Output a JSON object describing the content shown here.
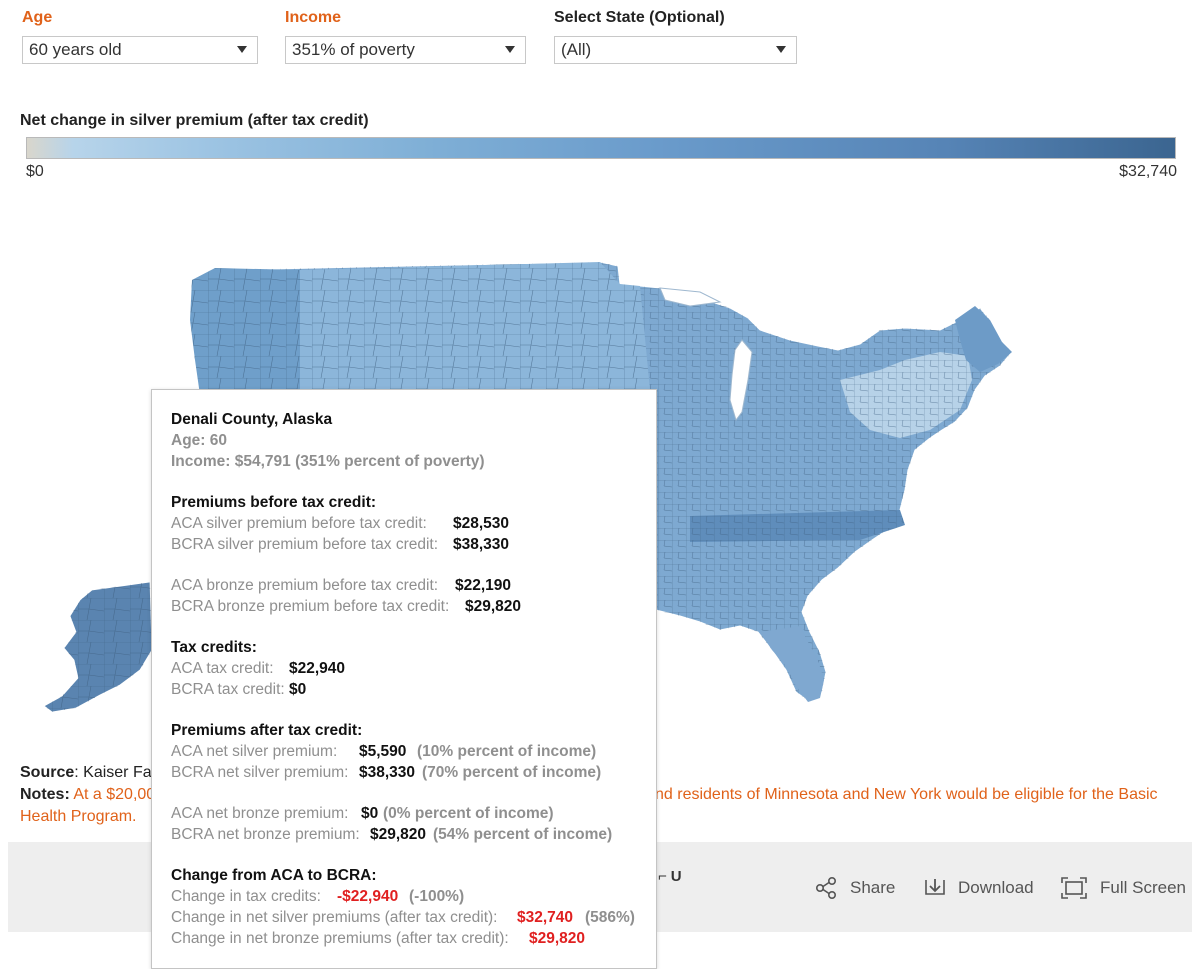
{
  "filters": {
    "age": {
      "label": "Age",
      "value": "60 years old"
    },
    "income": {
      "label": "Income",
      "value": "351% of poverty"
    },
    "state": {
      "label": "Select State (Optional)",
      "value": "(All)"
    }
  },
  "legend": {
    "title": "Net change in silver premium (after tax credit)",
    "min": "$0",
    "max": "$32,740"
  },
  "tooltip": {
    "title": "Denali County, Alaska",
    "age": "Age: 60",
    "income": "Income: $54,791 (351% percent of poverty)",
    "before_header": "Premiums before tax credit:",
    "aca_silver_before_label": "ACA silver premium before tax credit:",
    "aca_silver_before_value": "$28,530",
    "bcra_silver_before_label": "BCRA silver premium before tax credit:",
    "bcra_silver_before_value": "$38,330",
    "aca_bronze_before_label": "ACA bronze premium before tax credit:",
    "aca_bronze_before_value": "$22,190",
    "bcra_bronze_before_label": "BCRA bronze premium before tax credit:",
    "bcra_bronze_before_value": "$29,820",
    "credits_header": "Tax credits:",
    "aca_credit_label": "ACA tax credit:",
    "aca_credit_value": "$22,940",
    "bcra_credit_label": "BCRA tax credit:",
    "bcra_credit_value": "$0",
    "after_header": "Premiums after tax credit:",
    "aca_net_silver_label": "ACA net silver premium:",
    "aca_net_silver_value": "$5,590",
    "aca_net_silver_pct": "(10% percent of income)",
    "bcra_net_silver_label": "BCRA net silver premium:",
    "bcra_net_silver_value": "$38,330",
    "bcra_net_silver_pct": "(70% percent of income)",
    "aca_net_bronze_label": "ACA net bronze premium:",
    "aca_net_bronze_value": "$0",
    "aca_net_bronze_pct": "(0% percent of income)",
    "bcra_net_bronze_label": "BCRA net bronze premium:",
    "bcra_net_bronze_value": "$29,820",
    "bcra_net_bronze_pct": "(54% percent of income)",
    "change_header": "Change from ACA to BCRA:",
    "change_credits_label": "Change in tax credits:",
    "change_credits_value": "-$22,940",
    "change_credits_pct": "(-100%)",
    "change_silver_label": "Change in net silver premiums (after tax credit):",
    "change_silver_value": "$32,740",
    "change_silver_pct": "(586%)",
    "change_bronze_label": "Change in net bronze premiums (after tax credit):",
    "change_bronze_value": "$29,820"
  },
  "footer": {
    "source_label": "Source",
    "source_text": ": Kaiser Fam",
    "notes_label": "Notes",
    "notes_text_left": "At a $20,00",
    "notes_text_right": "nd residents of Minnesota and New York would be eligible for the Basic",
    "notes_line2": "Health Program."
  },
  "toolbar": {
    "partial": "U",
    "share": "Share",
    "download": "Download",
    "fullscreen": "Full Screen"
  },
  "colors": {
    "accent_orange": "#e0621a",
    "map_mid": "#7aa9d2",
    "map_dark": "#4a76a6",
    "red": "#e02020"
  }
}
